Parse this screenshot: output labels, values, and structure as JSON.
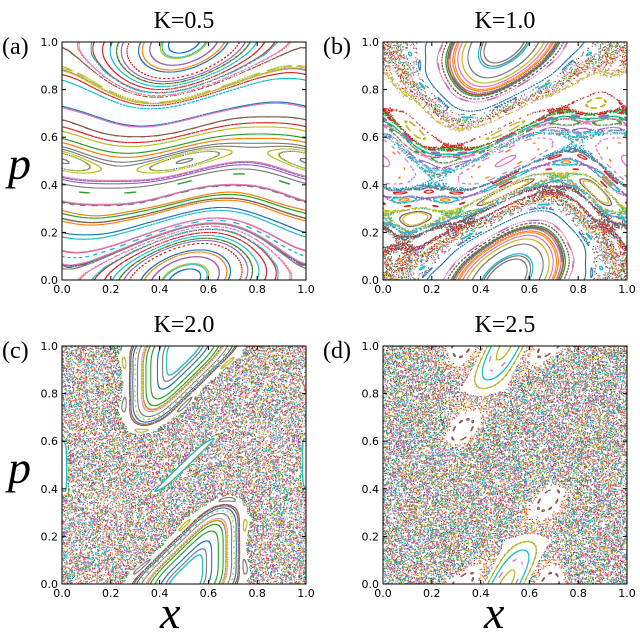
{
  "figure": {
    "colors": [
      "#1f77b4",
      "#ff7f0e",
      "#2ca02c",
      "#d62728",
      "#9467bd",
      "#8c564b",
      "#e377c2",
      "#7f7f7f",
      "#bcbd22",
      "#17becf"
    ],
    "x_axis_label": "x",
    "y_axis_label": "p"
  },
  "chart_data": [
    {
      "type": "scatter",
      "panel_label": "(a)",
      "title": "K=0.5",
      "K": 0.5,
      "xlabel": "",
      "ylabel": "p",
      "xlim": [
        0,
        1
      ],
      "ylim": [
        0,
        1
      ],
      "xticks": [
        "0.0",
        "0.2",
        "0.4",
        "0.6",
        "0.8",
        "1.0"
      ],
      "yticks": [
        "0.0",
        "0.2",
        "0.4",
        "0.6",
        "0.8",
        "1.0"
      ],
      "grid": false
    },
    {
      "type": "scatter",
      "panel_label": "(b)",
      "title": "K=1.0",
      "K": 1.0,
      "xlabel": "",
      "ylabel": "",
      "xlim": [
        0,
        1
      ],
      "ylim": [
        0,
        1
      ],
      "xticks": [
        "0.0",
        "0.2",
        "0.4",
        "0.6",
        "0.8",
        "1.0"
      ],
      "yticks": [
        "0.0",
        "0.2",
        "0.4",
        "0.6",
        "0.8",
        "1.0"
      ],
      "grid": false
    },
    {
      "type": "scatter",
      "panel_label": "(c)",
      "title": "K=2.0",
      "K": 2.0,
      "xlabel": "x",
      "ylabel": "p",
      "xlim": [
        0,
        1
      ],
      "ylim": [
        0,
        1
      ],
      "xticks": [
        "0.0",
        "0.2",
        "0.4",
        "0.6",
        "0.8",
        "1.0"
      ],
      "yticks": [
        "0.0",
        "0.2",
        "0.4",
        "0.6",
        "0.8",
        "1.0"
      ],
      "grid": false
    },
    {
      "type": "scatter",
      "panel_label": "(d)",
      "title": "K=2.5",
      "K": 2.5,
      "xlabel": "x",
      "ylabel": "",
      "xlim": [
        0,
        1
      ],
      "ylim": [
        0,
        1
      ],
      "xticks": [
        "0.0",
        "0.2",
        "0.4",
        "0.6",
        "0.8",
        "1.0"
      ],
      "yticks": [
        "0.0",
        "0.2",
        "0.4",
        "0.6",
        "0.8",
        "1.0"
      ],
      "grid": false
    }
  ]
}
